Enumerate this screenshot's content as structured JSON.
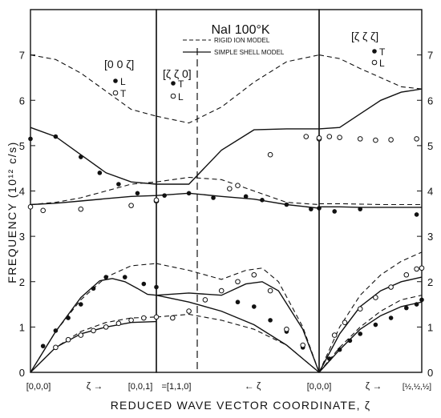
{
  "chart_data": {
    "type": "scatter",
    "title": "NaI 100°K",
    "xlabel": "REDUCED WAVE VECTOR COORDINATE, ζ",
    "ylabel": "FREQUENCY (10¹² c/s)",
    "ylim": [
      0,
      8
    ],
    "y_ticks": [
      "0",
      "1",
      "2",
      "3",
      "4",
      "5",
      "6",
      "7"
    ],
    "legend": [
      {
        "name": "RIGID ION MODEL",
        "style": "dashed"
      },
      {
        "name": "SIMPLE SHELL MODEL",
        "style": "solid"
      }
    ],
    "x_labels": {
      "p1_start": "[0,0,0]",
      "p1_arrow": "ζ →",
      "p1_end": "[0,0,1]",
      "p2_start": "=[1,1,0]",
      "p2_arrow": "← ζ",
      "p2_end": "[0,0,0]",
      "p3_arrow": "ζ →",
      "p3_end": "[½,½,½]"
    },
    "panels": [
      {
        "label": "[0 0 ζ]",
        "marker_legend": [
          {
            "marker": "filled",
            "name": "L"
          },
          {
            "marker": "open",
            "name": "T"
          }
        ],
        "rigid_ion": [
          [
            [
              0,
              7.0
            ],
            [
              0.2,
              6.9
            ],
            [
              0.4,
              6.6
            ],
            [
              0.6,
              6.2
            ],
            [
              0.8,
              5.8
            ],
            [
              1.0,
              5.65
            ]
          ],
          [
            [
              0,
              3.7
            ],
            [
              0.2,
              3.75
            ],
            [
              0.4,
              3.85
            ],
            [
              0.6,
              4.0
            ],
            [
              0.8,
              4.15
            ],
            [
              1.0,
              4.2
            ]
          ],
          [
            [
              0,
              0
            ],
            [
              0.2,
              0.9
            ],
            [
              0.4,
              1.6
            ],
            [
              0.6,
              2.1
            ],
            [
              0.8,
              2.35
            ],
            [
              1.0,
              2.4
            ]
          ],
          [
            [
              0,
              0
            ],
            [
              0.2,
              0.55
            ],
            [
              0.4,
              0.9
            ],
            [
              0.6,
              1.1
            ],
            [
              0.8,
              1.2
            ],
            [
              1.0,
              1.22
            ]
          ]
        ],
        "shell": [
          [
            [
              0,
              5.4
            ],
            [
              0.2,
              5.2
            ],
            [
              0.4,
              4.8
            ],
            [
              0.6,
              4.4
            ],
            [
              0.8,
              4.2
            ],
            [
              1.0,
              4.15
            ]
          ],
          [
            [
              0,
              3.7
            ],
            [
              0.2,
              3.73
            ],
            [
              0.4,
              3.78
            ],
            [
              0.6,
              3.83
            ],
            [
              0.8,
              3.88
            ],
            [
              1.0,
              3.9
            ]
          ],
          [
            [
              0,
              0
            ],
            [
              0.2,
              0.9
            ],
            [
              0.4,
              1.65
            ],
            [
              0.55,
              2.02
            ],
            [
              0.65,
              2.07
            ],
            [
              0.75,
              2.0
            ],
            [
              0.85,
              1.85
            ],
            [
              0.93,
              1.72
            ],
            [
              1.0,
              1.7
            ]
          ],
          [
            [
              0,
              0
            ],
            [
              0.2,
              0.55
            ],
            [
              0.4,
              0.85
            ],
            [
              0.6,
              1.0
            ],
            [
              0.8,
              1.1
            ],
            [
              1.0,
              1.12
            ]
          ]
        ],
        "measured_L": [
          [
            0,
            5.15
          ],
          [
            0.2,
            5.2
          ],
          [
            0.4,
            4.75
          ],
          [
            0.55,
            4.4
          ],
          [
            0.7,
            4.15
          ],
          [
            0.85,
            3.95
          ],
          [
            0.1,
            0.58
          ],
          [
            0.2,
            0.92
          ],
          [
            0.3,
            1.2
          ],
          [
            0.4,
            1.5
          ],
          [
            0.5,
            1.85
          ],
          [
            0.6,
            2.1
          ],
          [
            0.75,
            2.1
          ],
          [
            0.9,
            1.95
          ]
        ],
        "measured_T": [
          [
            0,
            3.65
          ],
          [
            0.1,
            3.57
          ],
          [
            0.4,
            3.6
          ],
          [
            0.8,
            3.68
          ],
          [
            1.0,
            3.78
          ],
          [
            0.2,
            0.55
          ],
          [
            0.3,
            0.72
          ],
          [
            0.4,
            0.82
          ],
          [
            0.5,
            0.92
          ],
          [
            0.6,
            1.0
          ],
          [
            0.7,
            1.08
          ],
          [
            0.8,
            1.15
          ],
          [
            0.9,
            1.2
          ],
          [
            1.0,
            1.22
          ]
        ]
      },
      {
        "label": "[ζ ζ 0]",
        "marker_legend": [
          {
            "marker": "filled",
            "name": "T"
          },
          {
            "marker": "open",
            "name": "L"
          }
        ],
        "rigid_ion": [
          [
            [
              0,
              5.65
            ],
            [
              0.2,
              5.5
            ],
            [
              0.4,
              5.85
            ],
            [
              0.6,
              6.4
            ],
            [
              0.8,
              6.85
            ],
            [
              1.0,
              7.0
            ]
          ],
          [
            [
              0,
              4.2
            ],
            [
              0.2,
              4.3
            ],
            [
              0.4,
              4.25
            ],
            [
              0.6,
              4.0
            ],
            [
              0.8,
              3.75
            ],
            [
              1.0,
              3.7
            ]
          ],
          [
            [
              0,
              2.4
            ],
            [
              0.2,
              2.25
            ],
            [
              0.4,
              2.05
            ],
            [
              0.55,
              2.25
            ],
            [
              0.65,
              2.3
            ],
            [
              0.75,
              2.0
            ],
            [
              0.9,
              1.0
            ],
            [
              1.0,
              0
            ]
          ],
          [
            [
              0,
              1.22
            ],
            [
              0.2,
              1.28
            ],
            [
              0.4,
              1.15
            ],
            [
              0.6,
              0.95
            ],
            [
              0.8,
              0.6
            ],
            [
              1.0,
              0
            ]
          ]
        ],
        "shell": [
          [
            [
              0,
              4.15
            ],
            [
              0.2,
              4.15
            ],
            [
              0.4,
              4.9
            ],
            [
              0.6,
              5.35
            ],
            [
              0.8,
              5.37
            ],
            [
              1.0,
              5.37
            ]
          ],
          [
            [
              0,
              3.9
            ],
            [
              0.2,
              3.95
            ],
            [
              0.4,
              3.88
            ],
            [
              0.6,
              3.82
            ],
            [
              0.8,
              3.7
            ],
            [
              1.0,
              3.62
            ]
          ],
          [
            [
              0,
              1.7
            ],
            [
              0.2,
              1.75
            ],
            [
              0.4,
              1.7
            ],
            [
              0.55,
              1.95
            ],
            [
              0.65,
              2.0
            ],
            [
              0.75,
              1.8
            ],
            [
              0.9,
              0.95
            ],
            [
              1.0,
              0
            ]
          ],
          [
            [
              0,
              1.7
            ],
            [
              0.2,
              1.55
            ],
            [
              0.4,
              1.35
            ],
            [
              0.6,
              1.05
            ],
            [
              0.8,
              0.6
            ],
            [
              1.0,
              0
            ]
          ]
        ],
        "measured_T": [
          [
            0,
            1.88
          ],
          [
            0.05,
            3.9
          ],
          [
            0.2,
            3.95
          ],
          [
            0.35,
            3.85
          ],
          [
            0.55,
            3.88
          ],
          [
            0.65,
            3.8
          ],
          [
            0.8,
            3.7
          ],
          [
            0.95,
            3.6
          ],
          [
            0.3,
            1.6
          ],
          [
            0.5,
            1.55
          ],
          [
            0.6,
            1.45
          ],
          [
            0.7,
            1.15
          ],
          [
            0.8,
            0.9
          ],
          [
            0.9,
            0.55
          ]
        ],
        "measured_L": [
          [
            0,
            3.8
          ],
          [
            0.1,
            1.2
          ],
          [
            0.2,
            1.35
          ],
          [
            0.3,
            1.6
          ],
          [
            0.4,
            1.8
          ],
          [
            0.5,
            2.0
          ],
          [
            0.6,
            2.15
          ],
          [
            0.7,
            1.8
          ],
          [
            0.45,
            4.05
          ],
          [
            0.5,
            4.12
          ],
          [
            0.7,
            4.8
          ],
          [
            0.92,
            5.2
          ],
          [
            1.0,
            5.15
          ],
          [
            0.8,
            0.95
          ],
          [
            0.9,
            0.6
          ]
        ]
      },
      {
        "label": "[ζ ζ ζ]",
        "marker_legend": [
          {
            "marker": "filled",
            "name": "T"
          },
          {
            "marker": "open",
            "name": "L"
          }
        ],
        "rigid_ion": [
          [
            [
              0,
              7.0
            ],
            [
              0.2,
              6.92
            ],
            [
              0.4,
              6.7
            ],
            [
              0.6,
              6.5
            ],
            [
              0.8,
              6.3
            ],
            [
              1.0,
              6.25
            ]
          ],
          [
            [
              0,
              3.72
            ],
            [
              0.2,
              3.72
            ],
            [
              0.4,
              3.71
            ],
            [
              0.6,
              3.7
            ],
            [
              0.8,
              3.7
            ],
            [
              1.0,
              3.7
            ]
          ],
          [
            [
              0,
              0
            ],
            [
              0.2,
              1.0
            ],
            [
              0.4,
              1.7
            ],
            [
              0.6,
              2.15
            ],
            [
              0.8,
              2.45
            ],
            [
              1.0,
              2.65
            ]
          ],
          [
            [
              0,
              0
            ],
            [
              0.2,
              0.55
            ],
            [
              0.4,
              1.0
            ],
            [
              0.6,
              1.35
            ],
            [
              0.8,
              1.6
            ],
            [
              1.0,
              1.7
            ]
          ]
        ],
        "shell": [
          [
            [
              0,
              5.37
            ],
            [
              0.2,
              5.4
            ],
            [
              0.4,
              5.7
            ],
            [
              0.6,
              6.0
            ],
            [
              0.8,
              6.18
            ],
            [
              1.0,
              6.25
            ]
          ],
          [
            [
              0,
              3.65
            ],
            [
              0.2,
              3.65
            ],
            [
              0.4,
              3.64
            ],
            [
              0.6,
              3.64
            ],
            [
              0.8,
              3.64
            ],
            [
              1.0,
              3.64
            ]
          ],
          [
            [
              0,
              0
            ],
            [
              0.2,
              0.85
            ],
            [
              0.4,
              1.45
            ],
            [
              0.6,
              1.8
            ],
            [
              0.8,
              2.0
            ],
            [
              1.0,
              2.1
            ]
          ],
          [
            [
              0,
              0
            ],
            [
              0.2,
              0.5
            ],
            [
              0.4,
              0.95
            ],
            [
              0.6,
              1.25
            ],
            [
              0.8,
              1.45
            ],
            [
              1.0,
              1.55
            ]
          ]
        ],
        "measured_T": [
          [
            0,
            3.62
          ],
          [
            0.15,
            3.55
          ],
          [
            0.4,
            3.6
          ],
          [
            0.95,
            3.48
          ],
          [
            0.1,
            0.3
          ],
          [
            0.2,
            0.5
          ],
          [
            0.3,
            0.7
          ],
          [
            0.4,
            0.85
          ],
          [
            0.55,
            1.05
          ],
          [
            0.7,
            1.2
          ],
          [
            0.85,
            1.42
          ],
          [
            0.95,
            1.5
          ],
          [
            1.0,
            1.6
          ]
        ],
        "measured_L": [
          [
            0,
            5.17
          ],
          [
            0.1,
            5.2
          ],
          [
            0.2,
            5.18
          ],
          [
            0.4,
            5.15
          ],
          [
            0.55,
            5.12
          ],
          [
            0.7,
            5.13
          ],
          [
            0.95,
            5.15
          ],
          [
            0.15,
            0.82
          ],
          [
            0.25,
            1.1
          ],
          [
            0.4,
            1.4
          ],
          [
            0.55,
            1.65
          ],
          [
            0.7,
            1.88
          ],
          [
            0.85,
            2.15
          ],
          [
            0.95,
            2.28
          ],
          [
            1.0,
            2.3
          ]
        ]
      }
    ]
  }
}
